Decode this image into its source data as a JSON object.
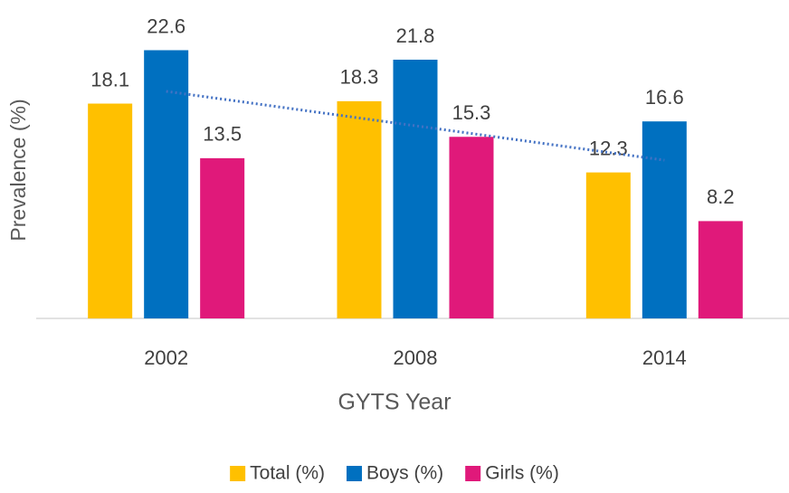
{
  "chart_data": {
    "type": "bar",
    "x_label": "GYTS Year",
    "y_label": "Prevalence (%)",
    "categories": [
      "2002",
      "2008",
      "2014"
    ],
    "series": [
      {
        "name": "Total (%)",
        "color": "#ffc000",
        "values": [
          18.1,
          18.3,
          12.3
        ]
      },
      {
        "name": "Boys (%)",
        "color": "#0070c0",
        "values": [
          22.6,
          21.8,
          16.6
        ]
      },
      {
        "name": "Girls (%)",
        "color": "#e0197a",
        "values": [
          13.5,
          15.3,
          8.2
        ]
      }
    ],
    "ylim": [
      0,
      25
    ],
    "trendline": {
      "series": 0,
      "color": "#4472c4",
      "style": "dotted"
    },
    "legend": "bottom"
  }
}
